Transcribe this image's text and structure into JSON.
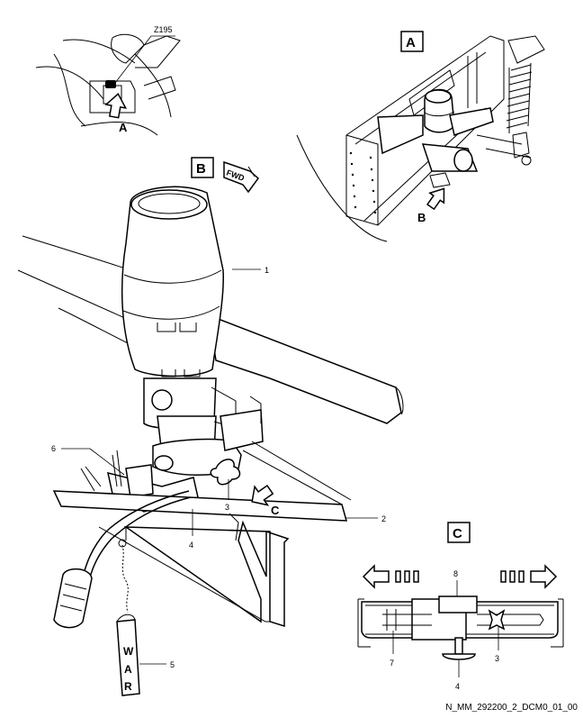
{
  "views": {
    "detail_a": {
      "box_label": "A",
      "arrow_label": "A",
      "part_ref": "Z195"
    },
    "detail_b": {
      "box_label": "B",
      "fwd_label": "FWD"
    },
    "main_view": {
      "arrow_label": "B"
    },
    "detail_c": {
      "box_label": "C",
      "arrow_label": "C"
    }
  },
  "callouts": {
    "main": [
      "1",
      "2",
      "3",
      "4",
      "5",
      "6"
    ],
    "detail_c": [
      "8",
      "7",
      "3",
      "4"
    ]
  },
  "flag": {
    "letters": [
      "W",
      "A",
      "R"
    ]
  },
  "drawing_ref": "N_MM_292200_2_DCM0_01_00"
}
